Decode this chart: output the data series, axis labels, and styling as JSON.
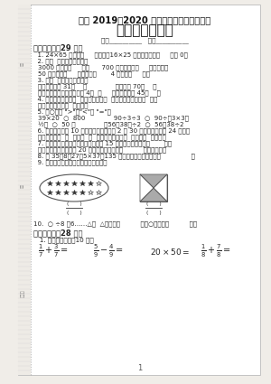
{
  "title1": "江都 2019－2020 学年度第二学期期末考试",
  "title2": "三年级数学试题",
  "score_line": "得分__________   等第__________",
  "bg_color": "#f0ede8",
  "page_color": "#ffffff",
  "text_color": "#333333",
  "item10": "10.  ○ ÷8 ＝6……△，  △最大是（          ），○最大是（          ）。",
  "section2": "二、算一算（28 分）",
  "sub1": "   1. 直接写出得数（10 分）",
  "page_num": "1"
}
